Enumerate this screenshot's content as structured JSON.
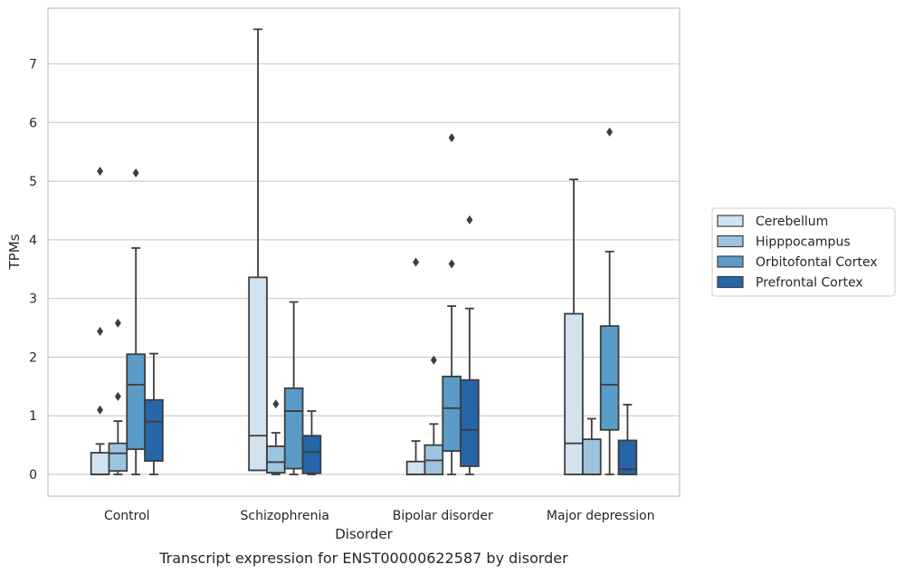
{
  "chart_data": {
    "type": "box",
    "title": "",
    "caption": "Transcript expression for ENST00000622587 by disorder",
    "xlabel": "Disorder",
    "ylabel": "TPMs",
    "ylim": [
      -0.37,
      7.95
    ],
    "yticks": [
      0,
      1,
      2,
      3,
      4,
      5,
      6,
      7
    ],
    "grid": "horizontal",
    "legend_position": "right",
    "categories": [
      "Control",
      "Schizophrenia",
      "Bipolar disorder",
      "Major depression"
    ],
    "series": [
      {
        "name": "Cerebellum",
        "color": "#d1e2f1",
        "boxes": [
          {
            "min": 0,
            "q1": 0,
            "median": 0,
            "q3": 0.37,
            "max": 0.52,
            "outliers": [
              1.1,
              2.44,
              5.17
            ]
          },
          {
            "min": 0.07,
            "q1": 0.07,
            "median": 0.66,
            "q3": 3.36,
            "max": 7.59,
            "outliers": []
          },
          {
            "min": 0,
            "q1": 0,
            "median": 0,
            "q3": 0.22,
            "max": 0.57,
            "outliers": [
              3.62
            ]
          },
          {
            "min": 0,
            "q1": 0,
            "median": 0.53,
            "q3": 2.74,
            "max": 5.03,
            "outliers": []
          }
        ]
      },
      {
        "name": "Hipppocampus",
        "color": "#9dc4de",
        "boxes": [
          {
            "min": 0,
            "q1": 0.06,
            "median": 0.36,
            "q3": 0.53,
            "max": 0.91,
            "outliers": [
              1.33,
              2.58
            ]
          },
          {
            "min": 0,
            "q1": 0.03,
            "median": 0.21,
            "q3": 0.48,
            "max": 0.71,
            "outliers": [
              1.2
            ]
          },
          {
            "min": 0,
            "q1": 0,
            "median": 0.24,
            "q3": 0.5,
            "max": 0.86,
            "outliers": [
              1.95
            ]
          },
          {
            "min": 0,
            "q1": 0,
            "median": 0,
            "q3": 0.6,
            "max": 0.95,
            "outliers": []
          }
        ]
      },
      {
        "name": "Orbitofontal Cortex",
        "color": "#5a9bc8",
        "boxes": [
          {
            "min": 0,
            "q1": 0.43,
            "median": 1.53,
            "q3": 2.05,
            "max": 3.86,
            "outliers": [
              5.14
            ]
          },
          {
            "min": 0,
            "q1": 0.1,
            "median": 1.08,
            "q3": 1.47,
            "max": 2.94,
            "outliers": []
          },
          {
            "min": 0,
            "q1": 0.4,
            "median": 1.13,
            "q3": 1.67,
            "max": 2.87,
            "outliers": [
              3.59,
              5.74
            ]
          },
          {
            "min": 0,
            "q1": 0.76,
            "median": 1.53,
            "q3": 2.53,
            "max": 3.8,
            "outliers": [
              5.84
            ]
          }
        ]
      },
      {
        "name": "Prefrontal Cortex",
        "color": "#2666a8",
        "boxes": [
          {
            "min": 0,
            "q1": 0.23,
            "median": 0.9,
            "q3": 1.27,
            "max": 2.06,
            "outliers": []
          },
          {
            "min": 0,
            "q1": 0.02,
            "median": 0.38,
            "q3": 0.66,
            "max": 1.08,
            "outliers": []
          },
          {
            "min": 0,
            "q1": 0.14,
            "median": 0.76,
            "q3": 1.61,
            "max": 2.83,
            "outliers": [
              4.34
            ]
          },
          {
            "min": 0,
            "q1": 0,
            "median": 0.09,
            "q3": 0.58,
            "max": 1.19,
            "outliers": []
          }
        ]
      }
    ]
  }
}
